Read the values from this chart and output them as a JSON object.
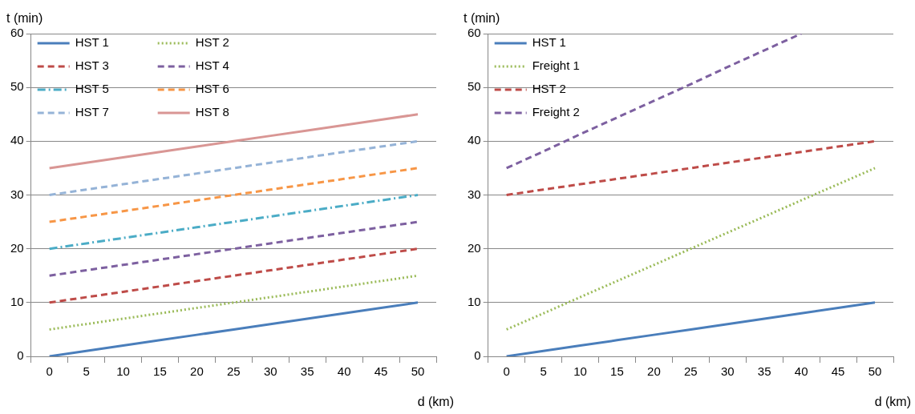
{
  "chart_data": [
    {
      "type": "line",
      "xlabel": "d (km)",
      "ylabel": "t (min)",
      "categories": [
        "0",
        "5",
        "10",
        "15",
        "20",
        "25",
        "30",
        "35",
        "40",
        "45",
        "50"
      ],
      "ylim": [
        0,
        60
      ],
      "yticks": [
        0,
        10,
        20,
        30,
        40,
        50,
        60
      ],
      "grid": "y",
      "legend": "top left",
      "marker": "none",
      "series": [
        {
          "name": "HST 1",
          "color": "#4a7ebb",
          "line_style": "solid",
          "values": [
            0,
            1,
            2,
            3,
            4,
            5,
            6,
            7,
            8,
            9,
            10
          ]
        },
        {
          "name": "HST 2",
          "color": "#9bbb59",
          "line_style": "dotted",
          "values": [
            5,
            6,
            7,
            8,
            9,
            10,
            11,
            12,
            13,
            14,
            15
          ]
        },
        {
          "name": "HST 3",
          "color": "#be4b48",
          "line_style": "dashed",
          "values": [
            10,
            11,
            12,
            13,
            14,
            15,
            16,
            17,
            18,
            19,
            20
          ]
        },
        {
          "name": "HST 4",
          "color": "#7d60a0",
          "line_style": "dashed",
          "values": [
            15,
            16,
            17,
            18,
            19,
            20,
            21,
            22,
            23,
            24,
            25
          ]
        },
        {
          "name": "HST 5",
          "color": "#4bacc6",
          "line_style": "dashdot",
          "values": [
            20,
            21,
            22,
            23,
            24,
            25,
            26,
            27,
            28,
            29,
            30
          ]
        },
        {
          "name": "HST 6",
          "color": "#f79646",
          "line_style": "dashed",
          "values": [
            25,
            26,
            27,
            28,
            29,
            30,
            31,
            32,
            33,
            34,
            35
          ]
        },
        {
          "name": "HST 7",
          "color": "#95b3d7",
          "line_style": "dashed",
          "values": [
            30,
            31,
            32,
            33,
            34,
            35,
            36,
            37,
            38,
            39,
            40
          ]
        },
        {
          "name": "HST 8",
          "color": "#d99694",
          "line_style": "solid",
          "values": [
            35,
            36,
            37,
            38,
            39,
            40,
            41,
            42,
            43,
            44,
            45
          ]
        }
      ]
    },
    {
      "type": "line",
      "xlabel": "d (km)",
      "ylabel": "t (min)",
      "categories": [
        "0",
        "5",
        "10",
        "15",
        "20",
        "25",
        "30",
        "35",
        "40",
        "45",
        "50"
      ],
      "ylim": [
        0,
        60
      ],
      "yticks": [
        0,
        10,
        20,
        30,
        40,
        50,
        60
      ],
      "grid": "y",
      "legend": "top left",
      "marker": "none",
      "series": [
        {
          "name": "HST 1",
          "color": "#4a7ebb",
          "line_style": "solid",
          "values": [
            0,
            1,
            2,
            3,
            4,
            5,
            6,
            7,
            8,
            9,
            10
          ]
        },
        {
          "name": "Freight 1",
          "color": "#9bbb59",
          "line_style": "dotted",
          "values": [
            5,
            8,
            11,
            14,
            17,
            20,
            23,
            26,
            29,
            32,
            35
          ]
        },
        {
          "name": "HST 2",
          "color": "#be4b48",
          "line_style": "dashed",
          "values": [
            30,
            31,
            32,
            33,
            34,
            35,
            36,
            37,
            38,
            39,
            40
          ]
        },
        {
          "name": "Freight 2",
          "color": "#7d60a0",
          "line_style": "dashed",
          "values": [
            35,
            38.1,
            41.3,
            44.4,
            47.5,
            50.6,
            53.8,
            56.9,
            60,
            null,
            null
          ]
        }
      ]
    }
  ]
}
